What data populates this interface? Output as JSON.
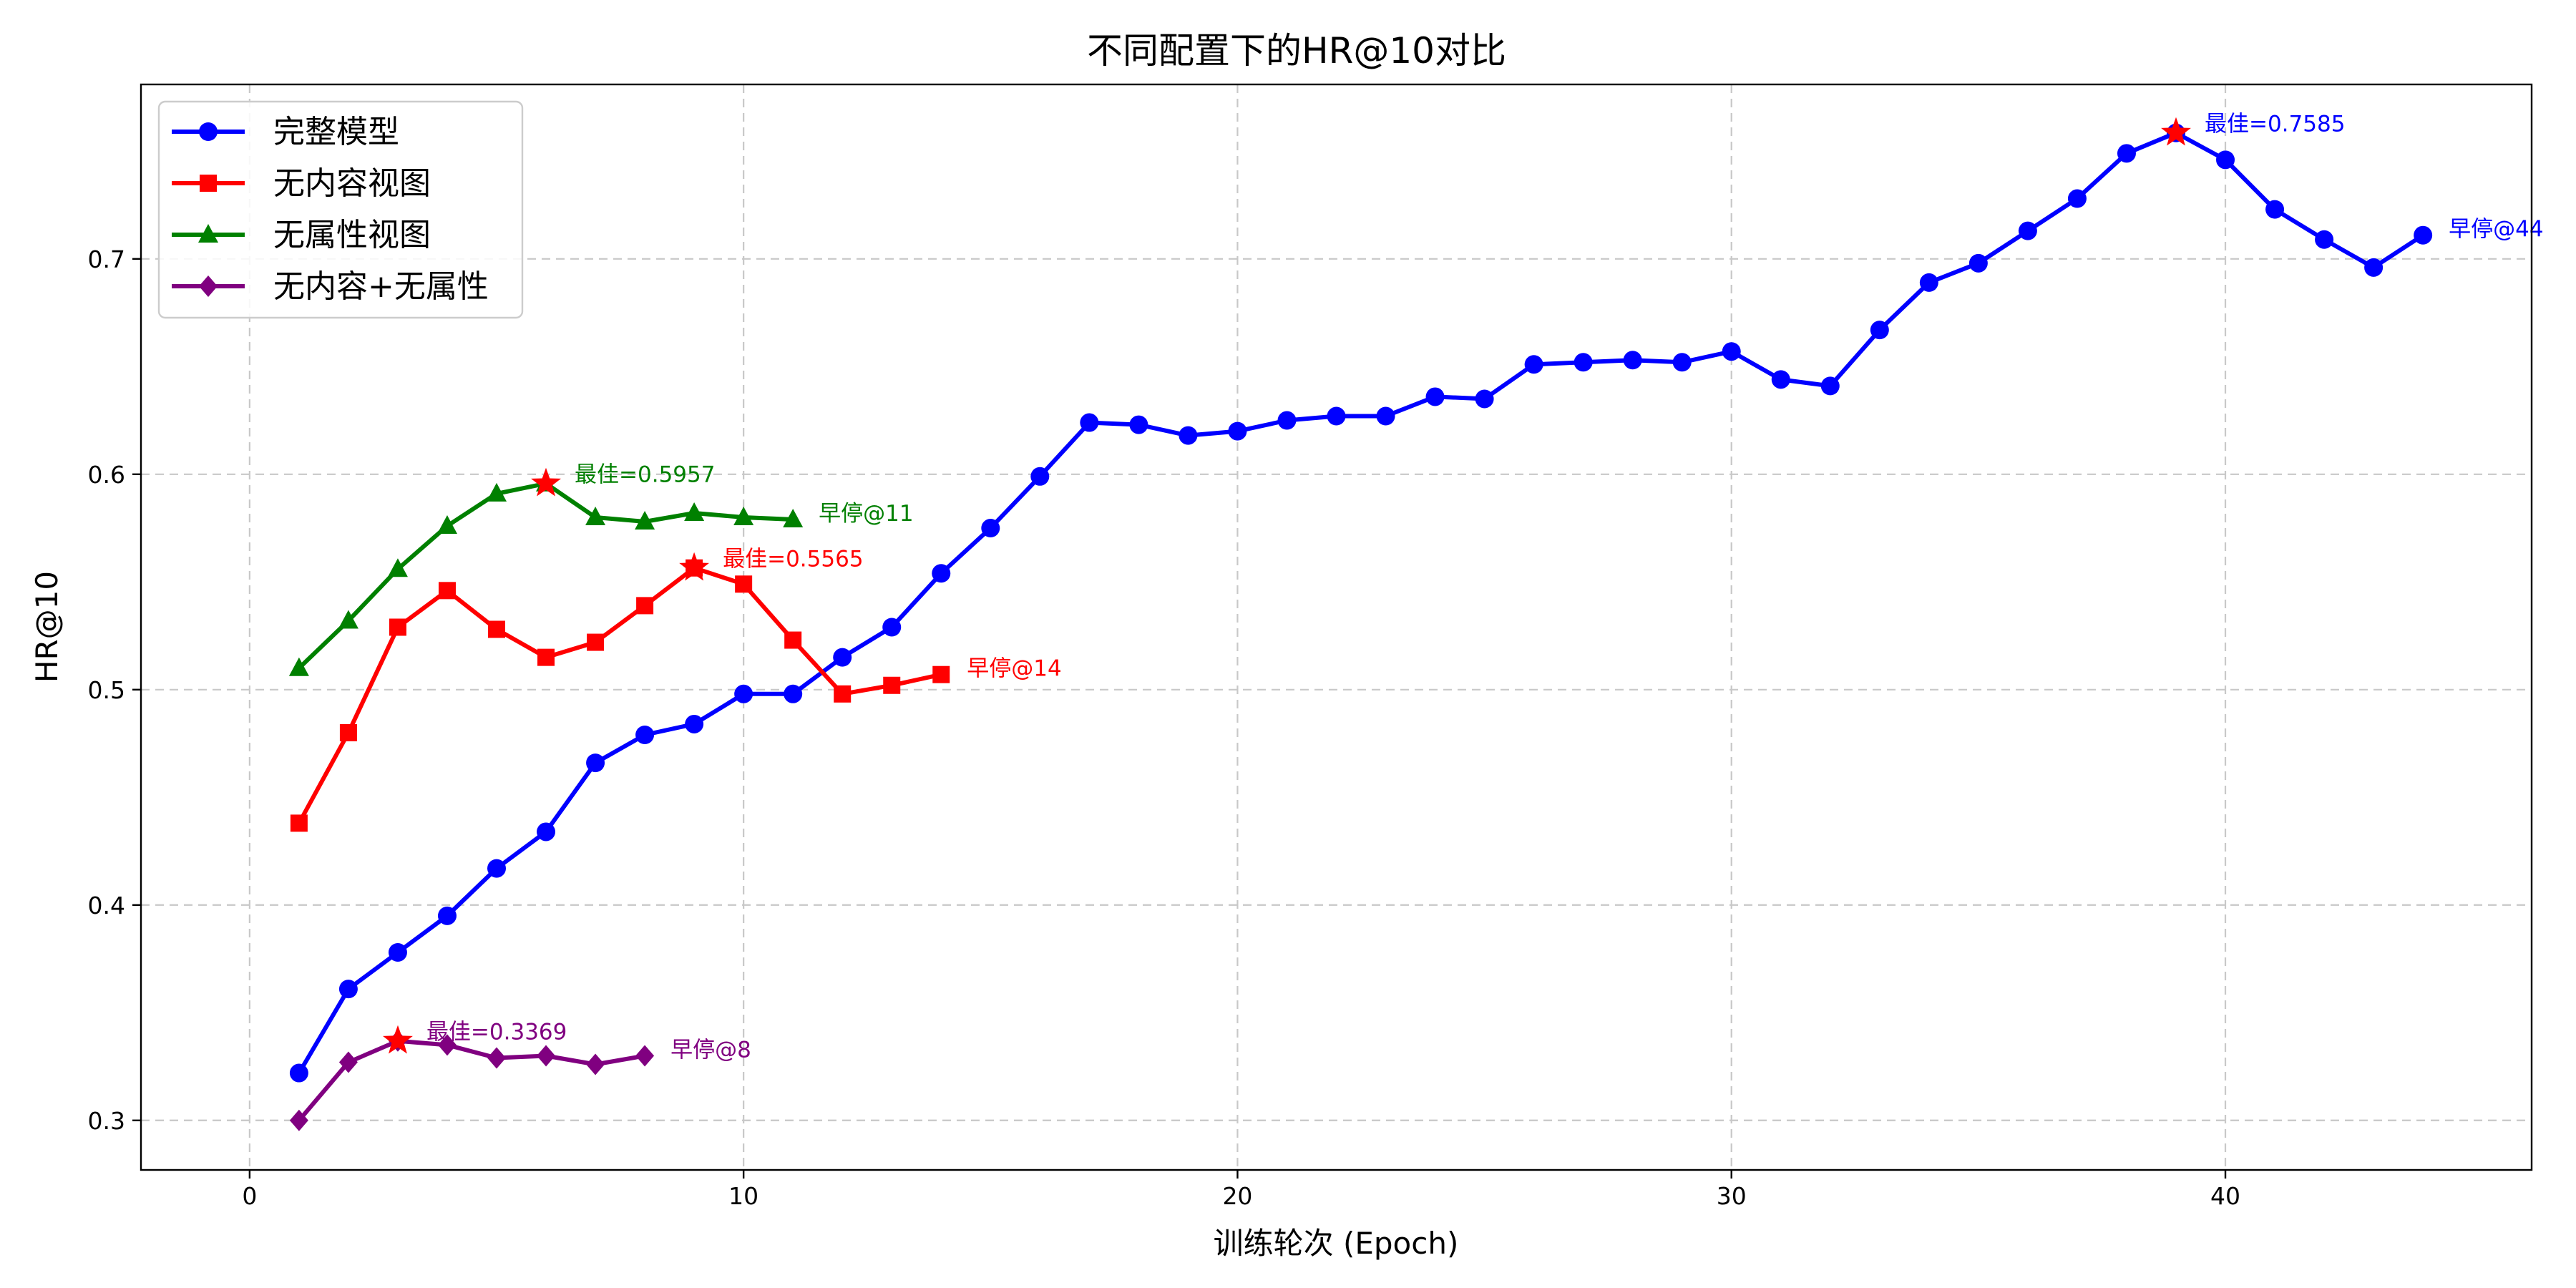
{
  "chart_data": {
    "type": "line",
    "title": "不同配置下的HR@10对比",
    "xlabel": "训练轮次 (Epoch)",
    "ylabel": "HR@10",
    "xlim": [
      -2.2,
      46.2
    ],
    "ylim": [
      0.277,
      0.781
    ],
    "xticks": [
      0,
      10,
      20,
      30,
      40
    ],
    "yticks": [
      0.3,
      0.4,
      0.5,
      0.6,
      0.7
    ],
    "xtick_labels": [
      "0",
      "10",
      "20",
      "30",
      "40"
    ],
    "ytick_labels": [
      "0.3",
      "0.4",
      "0.5",
      "0.6",
      "0.7"
    ],
    "grid": true,
    "legend_position": "top-left",
    "series": [
      {
        "name": "完整模型",
        "color": "#0000ff",
        "marker": "circle",
        "x": [
          1,
          2,
          3,
          4,
          5,
          6,
          7,
          8,
          9,
          10,
          11,
          12,
          13,
          14,
          15,
          16,
          17,
          18,
          19,
          20,
          21,
          22,
          23,
          24,
          25,
          26,
          27,
          28,
          29,
          30,
          31,
          32,
          33,
          34,
          35,
          36,
          37,
          38,
          39,
          40,
          41,
          42,
          43,
          44
        ],
        "values": [
          0.322,
          0.361,
          0.378,
          0.395,
          0.417,
          0.434,
          0.466,
          0.479,
          0.484,
          0.498,
          0.498,
          0.515,
          0.529,
          0.554,
          0.575,
          0.599,
          0.624,
          0.623,
          0.618,
          0.62,
          0.625,
          0.627,
          0.627,
          0.636,
          0.635,
          0.651,
          0.652,
          0.653,
          0.652,
          0.657,
          0.644,
          0.641,
          0.667,
          0.689,
          0.698,
          0.713,
          0.728,
          0.749,
          0.7585,
          0.746,
          0.723,
          0.709,
          0.696,
          0.711
        ],
        "best": {
          "x": 39,
          "y": 0.7585,
          "label": "最佳=0.7585"
        },
        "stop": {
          "x": 44,
          "y": 0.711,
          "label": "早停@44"
        }
      },
      {
        "name": "无内容视图",
        "color": "#ff0000",
        "marker": "square",
        "x": [
          1,
          2,
          3,
          4,
          5,
          6,
          7,
          8,
          9,
          10,
          11,
          12,
          13,
          14
        ],
        "values": [
          0.438,
          0.48,
          0.529,
          0.546,
          0.528,
          0.515,
          0.522,
          0.539,
          0.5565,
          0.549,
          0.523,
          0.498,
          0.502,
          0.507
        ],
        "best": {
          "x": 9,
          "y": 0.5565,
          "label": "最佳=0.5565"
        },
        "stop": {
          "x": 14,
          "y": 0.507,
          "label": "早停@14"
        }
      },
      {
        "name": "无属性视图",
        "color": "#008000",
        "marker": "triangle",
        "x": [
          1,
          2,
          3,
          4,
          5,
          6,
          7,
          8,
          9,
          10,
          11
        ],
        "values": [
          0.51,
          0.532,
          0.556,
          0.576,
          0.591,
          0.5957,
          0.58,
          0.578,
          0.582,
          0.58,
          0.579
        ],
        "best": {
          "x": 6,
          "y": 0.5957,
          "label": "最佳=0.5957"
        },
        "stop": {
          "x": 11,
          "y": 0.579,
          "label": "早停@11"
        }
      },
      {
        "name": "无内容+无属性",
        "color": "#800080",
        "marker": "diamond",
        "x": [
          1,
          2,
          3,
          4,
          5,
          6,
          7,
          8
        ],
        "values": [
          0.3,
          0.327,
          0.3369,
          0.335,
          0.329,
          0.33,
          0.326,
          0.33
        ],
        "best": {
          "x": 3,
          "y": 0.3369,
          "label": "最佳=0.3369"
        },
        "stop": {
          "x": 8,
          "y": 0.33,
          "label": "早停@8"
        }
      }
    ]
  },
  "best_marker_color": "#ff0000"
}
